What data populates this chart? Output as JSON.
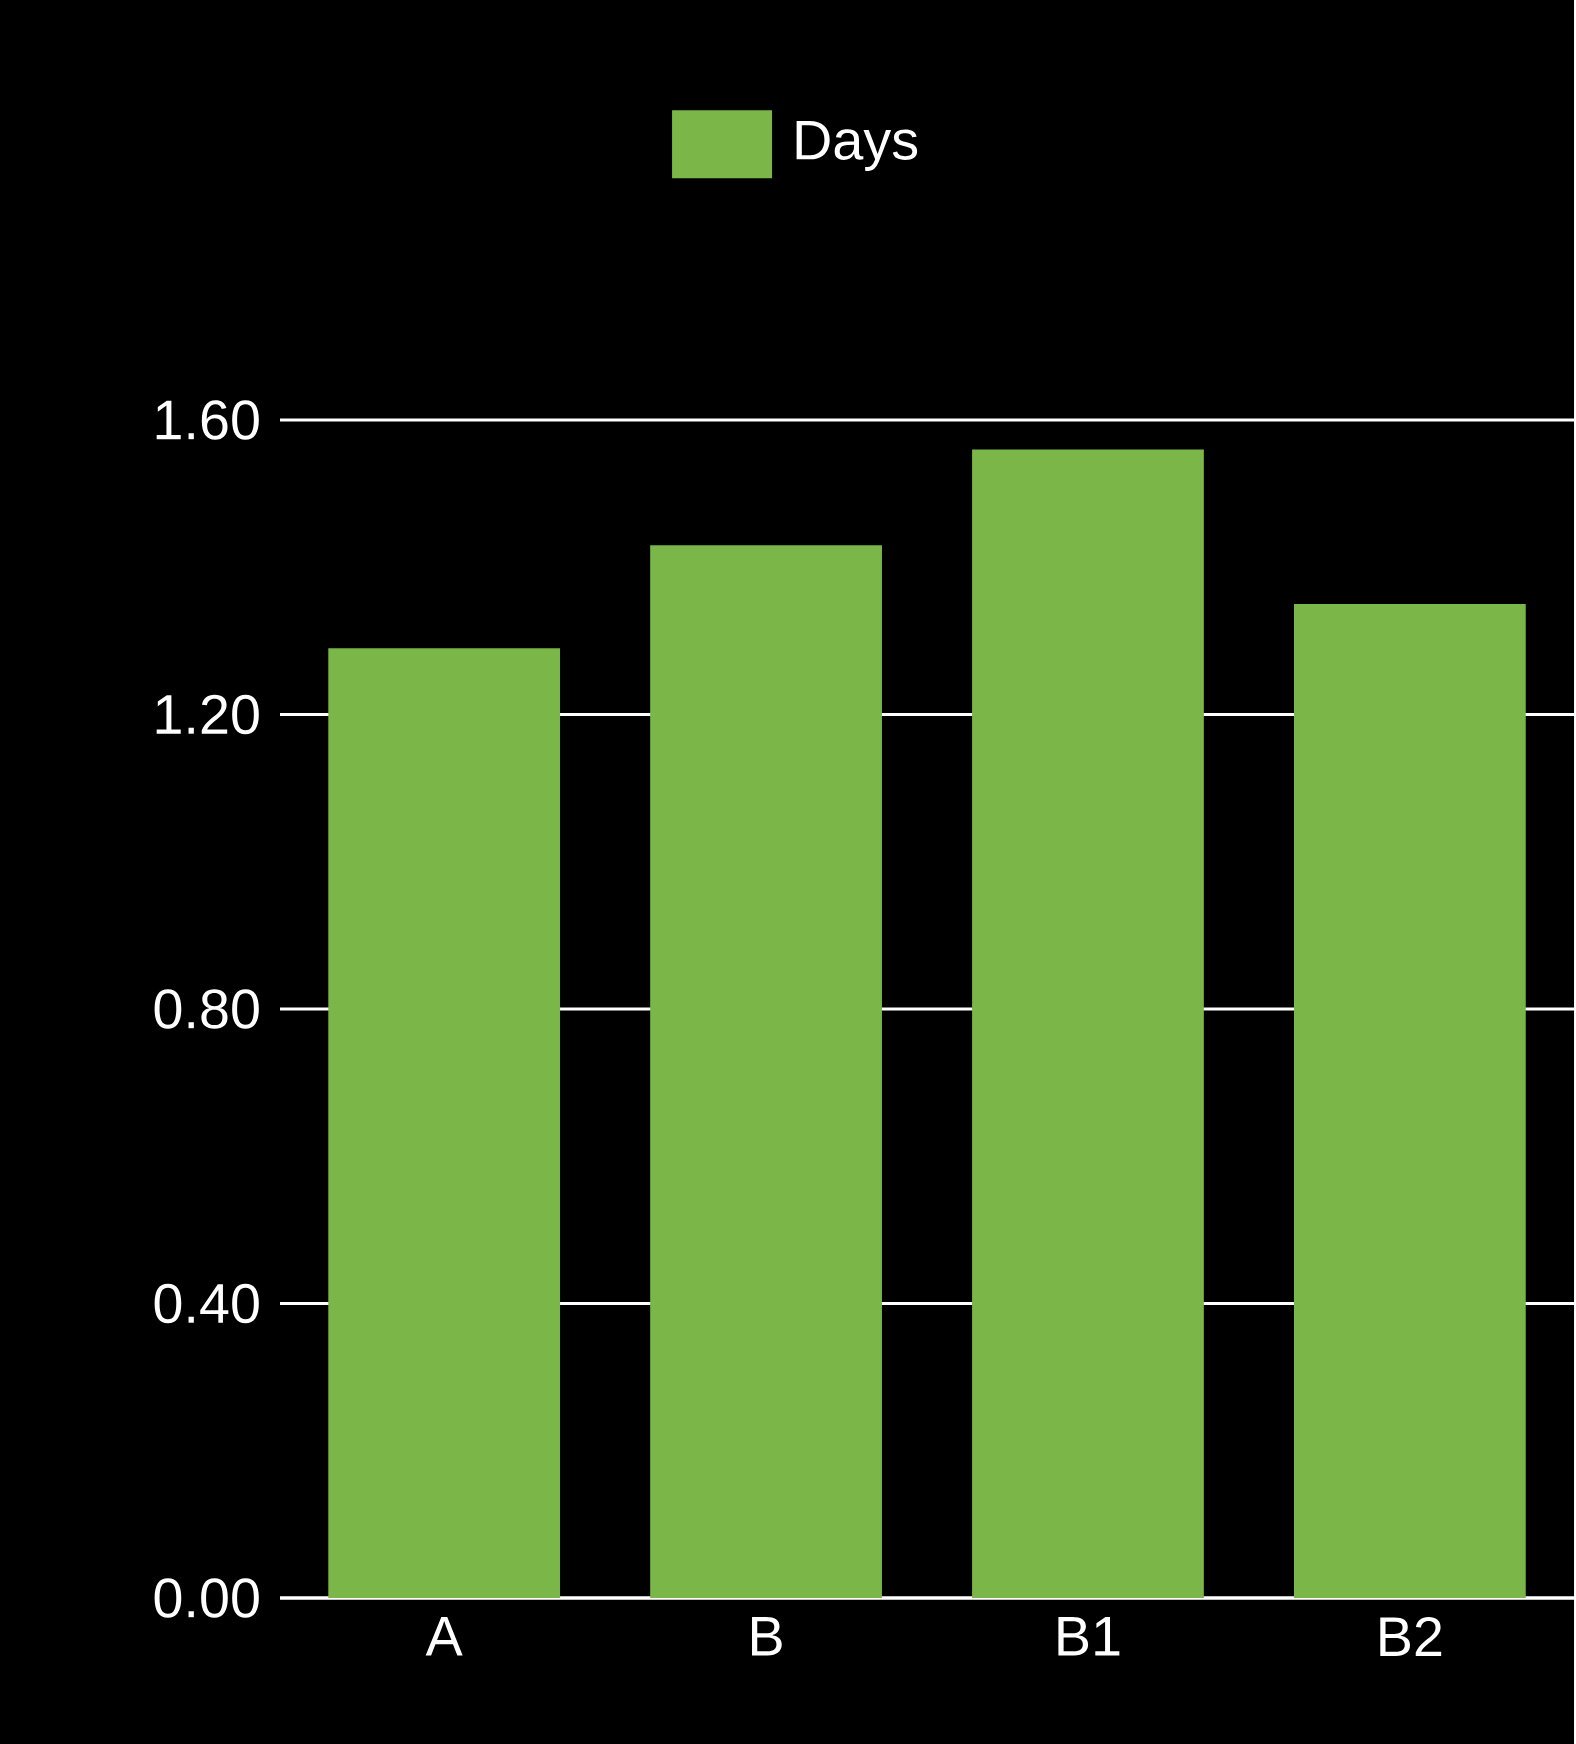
{
  "chart_data": {
    "type": "bar",
    "categories": [
      "A",
      "B",
      "B1",
      "B2"
    ],
    "series": [
      {
        "name": "Days",
        "color": "#7ab648",
        "values": [
          1.29,
          1.43,
          1.56,
          1.35
        ]
      }
    ],
    "ylim": [
      0,
      1.6
    ],
    "yticks": [
      {
        "value": 0,
        "label": "0.00"
      },
      {
        "value": 0.4,
        "label": "0.40"
      },
      {
        "value": 0.8,
        "label": "0.80"
      },
      {
        "value": 1.2,
        "label": "1.20"
      },
      {
        "value": 1.6,
        "label": "1.60"
      }
    ],
    "grid": "y",
    "legend": "top"
  }
}
